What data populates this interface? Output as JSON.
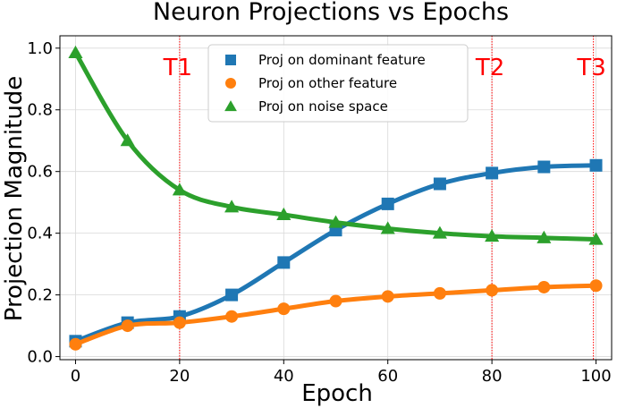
{
  "chart_data": {
    "type": "line",
    "title": "Neuron Projections vs Epochs",
    "xlabel": "Epoch",
    "ylabel": "Projection Magnitude",
    "xlim": [
      -3,
      103
    ],
    "ylim": [
      -0.01,
      1.04
    ],
    "x_ticks": [
      0,
      20,
      40,
      60,
      80,
      100
    ],
    "y_ticks": [
      0.0,
      0.2,
      0.4,
      0.6,
      0.8,
      1.0
    ],
    "x_tick_labels": [
      "0",
      "20",
      "40",
      "60",
      "80",
      "100"
    ],
    "y_tick_labels": [
      "0.0",
      "0.2",
      "0.4",
      "0.6",
      "0.8",
      "1.0"
    ],
    "grid": true,
    "legend_position": "top-center",
    "x": [
      0,
      10,
      20,
      30,
      40,
      50,
      60,
      70,
      80,
      90,
      100
    ],
    "series": [
      {
        "name": "Proj on dominant feature",
        "marker": "square",
        "color": "#1f77b4",
        "values": [
          0.05,
          0.11,
          0.13,
          0.2,
          0.305,
          0.41,
          0.495,
          0.56,
          0.595,
          0.615,
          0.62
        ]
      },
      {
        "name": "Proj on other feature",
        "marker": "circle",
        "color": "#ff7f0e",
        "values": [
          0.04,
          0.1,
          0.11,
          0.13,
          0.155,
          0.18,
          0.195,
          0.205,
          0.215,
          0.225,
          0.23
        ]
      },
      {
        "name": "Proj on noise space",
        "marker": "triangle",
        "color": "#2ca02c",
        "values": [
          0.985,
          0.7,
          0.54,
          0.485,
          0.46,
          0.435,
          0.415,
          0.4,
          0.39,
          0.385,
          0.38
        ]
      }
    ],
    "vertical_lines": [
      {
        "x": 20,
        "label": "T1",
        "color": "#ff0000"
      },
      {
        "x": 80,
        "label": "T2",
        "color": "#ff0000"
      },
      {
        "x": 99.5,
        "label": "T3",
        "color": "#ff0000"
      }
    ]
  }
}
